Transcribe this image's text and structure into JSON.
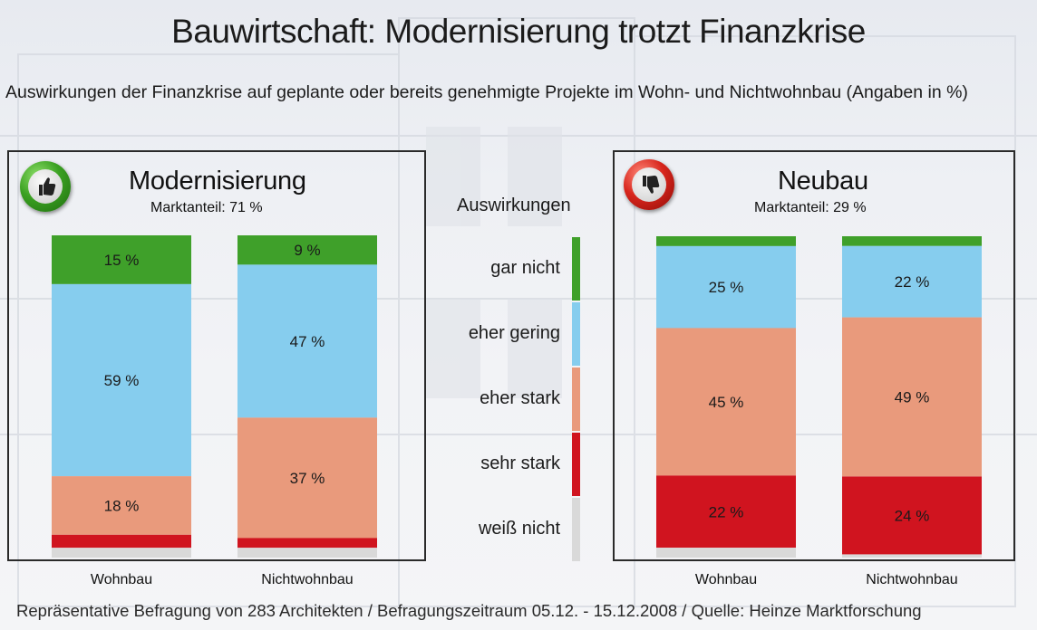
{
  "title": "Bauwirtschaft: Modernisierung trotzt Finanzkrise",
  "subtitle": "Auswirkungen der Finanzkrise auf geplante oder bereits genehmigte Projekte im Wohn- und Nichtwohnbau (Angaben in %)",
  "footer": "Repräsentative Befragung von 283 Architekten / Befragungszeitraum 05.12. - 15.12.2008 / Quelle: Heinze Marktforschung",
  "legend": {
    "title": "Auswirkungen",
    "items": [
      {
        "label": "gar nicht",
        "color": "#3fa02a"
      },
      {
        "label": "eher gering",
        "color": "#86cdee"
      },
      {
        "label": "eher stark",
        "color": "#e99a7c"
      },
      {
        "label": "sehr stark",
        "color": "#d0141f"
      },
      {
        "label": "weiß nicht",
        "color": "#d9d9d9"
      }
    ]
  },
  "panels": {
    "left": {
      "title": "Modernisierung",
      "share": "Marktanteil: 71 %",
      "icon": "thumbs-up-icon"
    },
    "right": {
      "title": "Neubau",
      "share": "Marktanteil: 29 %",
      "icon": "thumbs-down-icon"
    }
  },
  "chart_data": [
    {
      "type": "bar",
      "stacked": true,
      "title": "Modernisierung",
      "categories": [
        "Wohnbau",
        "Nichtwohnbau"
      ],
      "series": [
        {
          "name": "gar nicht",
          "values": [
            15,
            9
          ],
          "labels": [
            "15 %",
            "9 %"
          ]
        },
        {
          "name": "eher gering",
          "values": [
            59,
            47
          ],
          "labels": [
            "59 %",
            "47 %"
          ]
        },
        {
          "name": "eher stark",
          "values": [
            18,
            37
          ],
          "labels": [
            "18 %",
            "37 %"
          ]
        },
        {
          "name": "sehr stark",
          "values": [
            4,
            3
          ],
          "labels": [
            "",
            ""
          ]
        },
        {
          "name": "weiß nicht",
          "values": [
            3,
            3
          ],
          "labels": [
            "",
            ""
          ]
        }
      ],
      "ylim": [
        0,
        100
      ]
    },
    {
      "type": "bar",
      "stacked": true,
      "title": "Neubau",
      "categories": [
        "Wohnbau",
        "Nichtwohnbau"
      ],
      "series": [
        {
          "name": "gar nicht",
          "values": [
            3,
            3
          ],
          "labels": [
            "",
            ""
          ]
        },
        {
          "name": "eher gering",
          "values": [
            25,
            22
          ],
          "labels": [
            "25 %",
            "22 %"
          ]
        },
        {
          "name": "eher stark",
          "values": [
            45,
            49
          ],
          "labels": [
            "45 %",
            "49 %"
          ]
        },
        {
          "name": "sehr stark",
          "values": [
            22,
            24
          ],
          "labels": [
            "22 %",
            "24 %"
          ]
        },
        {
          "name": "weiß nicht",
          "values": [
            3,
            1
          ],
          "labels": [
            "",
            ""
          ]
        }
      ],
      "ylim": [
        0,
        100
      ]
    }
  ]
}
